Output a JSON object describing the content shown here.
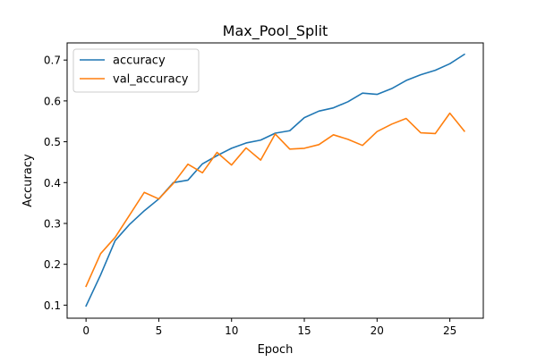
{
  "chart_data": {
    "type": "line",
    "title": "Max_Pool_Split",
    "xlabel": "Epoch",
    "ylabel": "Accuracy",
    "xlim": [
      -1.3,
      27.3
    ],
    "ylim": [
      0.068,
      0.742
    ],
    "xticks": [
      0,
      5,
      10,
      15,
      20,
      25
    ],
    "yticks": [
      0.1,
      0.2,
      0.3,
      0.4,
      0.5,
      0.6,
      0.7
    ],
    "grid": false,
    "legend_position": "top-left",
    "x": [
      0,
      1,
      2,
      3,
      4,
      5,
      6,
      7,
      8,
      9,
      10,
      11,
      12,
      13,
      14,
      15,
      16,
      17,
      18,
      19,
      20,
      21,
      22,
      23,
      24,
      25,
      26
    ],
    "series": [
      {
        "name": "accuracy",
        "color": "#1f77b4",
        "values": [
          0.098,
          0.174,
          0.258,
          0.298,
          0.331,
          0.36,
          0.4,
          0.406,
          0.446,
          0.466,
          0.484,
          0.497,
          0.504,
          0.521,
          0.527,
          0.559,
          0.575,
          0.583,
          0.598,
          0.619,
          0.616,
          0.63,
          0.65,
          0.664,
          0.675,
          0.691,
          0.714
        ]
      },
      {
        "name": "val_accuracy",
        "color": "#ff7f0e",
        "values": [
          0.146,
          0.226,
          0.266,
          0.321,
          0.376,
          0.36,
          0.398,
          0.445,
          0.424,
          0.474,
          0.443,
          0.485,
          0.455,
          0.519,
          0.482,
          0.484,
          0.493,
          0.517,
          0.506,
          0.491,
          0.525,
          0.543,
          0.557,
          0.522,
          0.52,
          0.57,
          0.526
        ]
      }
    ]
  }
}
